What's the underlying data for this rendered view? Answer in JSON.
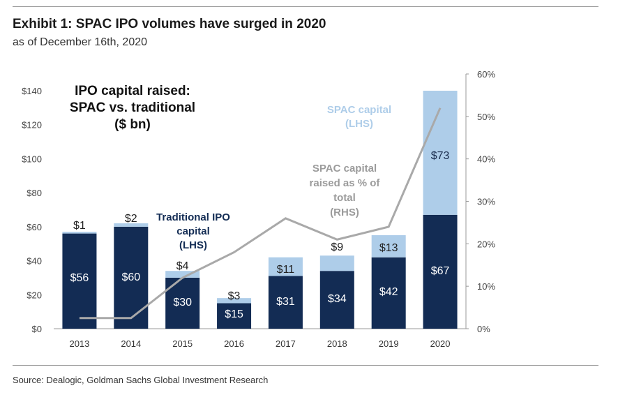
{
  "header": {
    "title": "Exhibit 1: SPAC IPO volumes have surged in 2020",
    "subtitle": "as of December 16th, 2020"
  },
  "footer": {
    "source": "Source: Dealogic, Goldman Sachs Global Investment Research"
  },
  "colors": {
    "traditional": "#132c54",
    "spac": "#aecde9",
    "pct_line": "#a9a9a9",
    "axis_text": "#444444"
  },
  "chart_data": {
    "type": "bar",
    "stacked": true,
    "inner_title": [
      "IPO capital raised:",
      "SPAC vs. traditional",
      "($ bn)"
    ],
    "categories": [
      "2013",
      "2014",
      "2015",
      "2016",
      "2017",
      "2018",
      "2019",
      "2020"
    ],
    "series": [
      {
        "name_lines": [
          "Traditional IPO",
          "capital",
          "(LHS)"
        ],
        "axis": "left",
        "values": [
          56,
          60,
          30,
          15,
          31,
          34,
          42,
          67
        ],
        "labels": [
          "$56",
          "$60",
          "$30",
          "$15",
          "$31",
          "$34",
          "$42",
          "$67"
        ]
      },
      {
        "name_lines": [
          "SPAC capital",
          "(LHS)"
        ],
        "axis": "left",
        "values": [
          1,
          2,
          4,
          3,
          11,
          9,
          13,
          73
        ],
        "labels": [
          "$1",
          "$2",
          "$4",
          "$3",
          "$11",
          "$9",
          "$13",
          "$73"
        ]
      },
      {
        "name_lines": [
          "SPAC capital",
          "raised as % of",
          "total",
          "(RHS)"
        ],
        "axis": "right",
        "type": "line",
        "values": [
          2.5,
          2.5,
          12,
          18,
          26,
          21,
          24,
          52
        ]
      }
    ],
    "left_axis": {
      "range": [
        0,
        140
      ],
      "ticks": [
        0,
        20,
        40,
        60,
        80,
        100,
        120,
        140
      ],
      "tick_labels": [
        "$0",
        "$20",
        "$40",
        "$60",
        "$80",
        "$100",
        "$120",
        "$140"
      ]
    },
    "right_axis": {
      "range": [
        0,
        60
      ],
      "ticks": [
        0,
        10,
        20,
        30,
        40,
        50,
        60
      ],
      "tick_labels": [
        "0%",
        "10%",
        "20%",
        "30%",
        "40%",
        "50%",
        "60%"
      ]
    },
    "grid": false,
    "legend": "inline-labels"
  }
}
